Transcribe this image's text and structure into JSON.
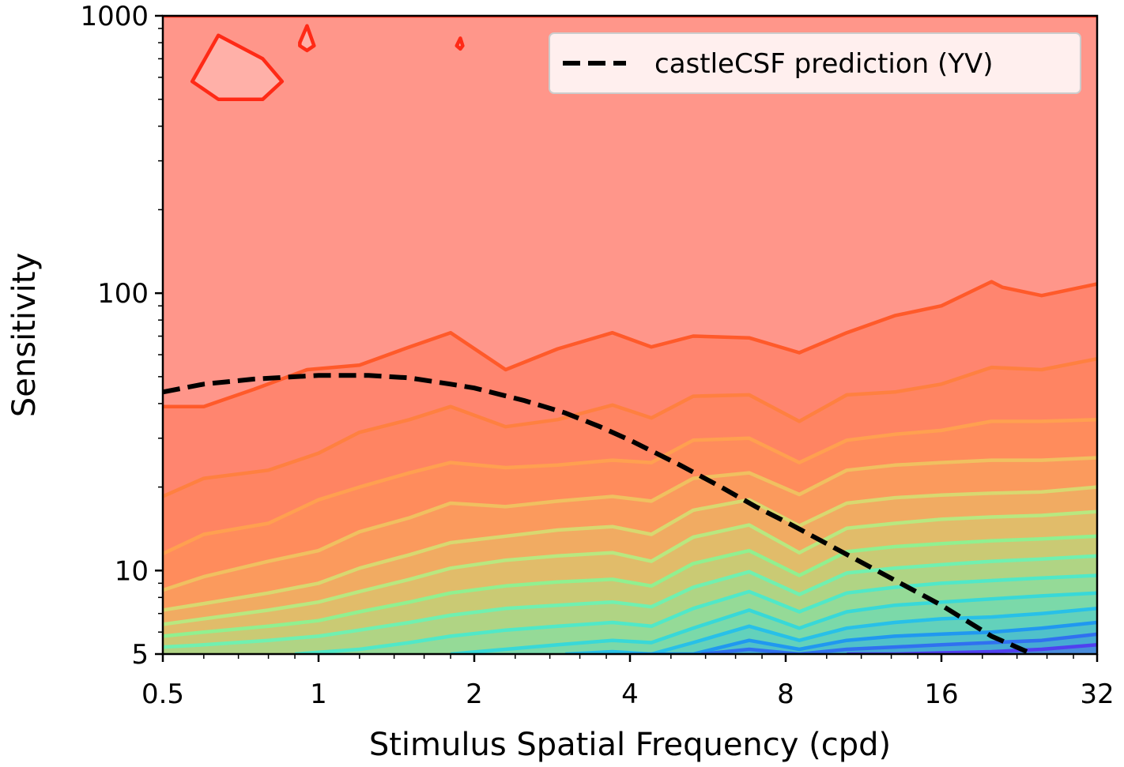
{
  "chart_data": {
    "type": "line",
    "chart_kind": "contour plot with overlaid model prediction",
    "xlabel": "Stimulus Spatial Frequency (cpd)",
    "ylabel": "Sensitivity",
    "x_scale": "log2",
    "y_scale": "log10",
    "xlim": [
      0.5,
      32
    ],
    "ylim": [
      5,
      1000
    ],
    "x_ticks": [
      0.5,
      1,
      2,
      4,
      8,
      16,
      32
    ],
    "x_tick_labels": [
      "0.5",
      "1",
      "2",
      "4",
      "8",
      "16",
      "32"
    ],
    "y_ticks": [
      5,
      10,
      100,
      1000
    ],
    "y_tick_labels": [
      "5",
      "10",
      "100",
      "1000"
    ],
    "grid": false,
    "legend": {
      "position": "top-right",
      "entries": [
        "castleCSF prediction (YV)"
      ]
    },
    "series": [
      {
        "name": "castleCSF prediction (YV)",
        "style": "dashed",
        "color": "#000000",
        "x": [
          0.5,
          0.6,
          0.75,
          0.9,
          1.0,
          1.25,
          1.5,
          1.8,
          2.0,
          2.5,
          3.0,
          3.5,
          4.0,
          5.0,
          6.0,
          7.0,
          8.0,
          10.0,
          12.0,
          16.0,
          20.0,
          24.0
        ],
        "y": [
          44,
          47,
          49,
          50,
          50.5,
          50.5,
          49.5,
          47,
          45.5,
          41,
          37,
          33,
          29.5,
          24,
          20,
          17,
          15,
          12,
          10,
          7.5,
          5.8,
          5.0
        ]
      }
    ],
    "contour_levels": [
      {
        "color": "#ff2a16",
        "x": [
          0.5,
          0.6,
          0.75,
          0.9,
          1.0,
          1.25,
          1.5,
          1.8,
          2.0,
          2.4,
          2.8,
          3.5,
          4.0,
          5.0,
          6.0,
          7.0,
          8.0,
          10.0,
          13.0,
          17.0,
          21.0,
          23.0,
          26.0,
          32.0
        ],
        "y": [
          1000,
          1000,
          1000,
          1000,
          1000,
          1000,
          1000,
          1000,
          1000,
          1000,
          1000,
          1000,
          1000,
          1000,
          1000,
          1000,
          1000,
          1000,
          1000,
          1000,
          1000,
          1000,
          1000,
          1000
        ]
      },
      {
        "color": "#ff5a2a",
        "x": [
          0.5,
          0.6,
          0.75,
          0.95,
          1.2,
          1.5,
          1.8,
          2.3,
          2.9,
          3.7,
          4.4,
          5.3,
          6.8,
          8.5,
          10.5,
          13.0,
          16.0,
          20.0,
          21.0,
          25.0,
          32.0
        ],
        "y": [
          39,
          39,
          45,
          53,
          55,
          64,
          72,
          53,
          63,
          72,
          64,
          70,
          69,
          61,
          72,
          83,
          90,
          110,
          105,
          98,
          108
        ]
      },
      {
        "color": "#ff8040",
        "x": [
          0.5,
          0.6,
          0.8,
          1.0,
          1.2,
          1.5,
          1.8,
          2.3,
          2.9,
          3.7,
          4.4,
          5.3,
          6.8,
          8.5,
          10.5,
          13.0,
          16.0,
          20.0,
          25.0,
          32.0
        ],
        "y": [
          18.5,
          21.5,
          23,
          26.5,
          31.5,
          35,
          39,
          33,
          35,
          39.5,
          35.5,
          42.5,
          43,
          34.5,
          43,
          44,
          47,
          54,
          53,
          58
        ]
      },
      {
        "color": "#ffa050",
        "x": [
          0.5,
          0.6,
          0.8,
          1.0,
          1.2,
          1.5,
          1.8,
          2.3,
          2.9,
          3.7,
          4.4,
          5.3,
          6.8,
          8.5,
          10.5,
          13.0,
          16.0,
          20.0,
          25.0,
          32.0
        ],
        "y": [
          11.5,
          13.5,
          14.8,
          18,
          20,
          22.5,
          24.5,
          23.5,
          24,
          25,
          24.5,
          29.5,
          30,
          24.5,
          29.5,
          31,
          32,
          34.5,
          34.5,
          35
        ]
      },
      {
        "color": "#f0c060",
        "x": [
          0.5,
          0.6,
          0.8,
          1.0,
          1.2,
          1.5,
          1.8,
          2.3,
          2.9,
          3.7,
          4.4,
          5.3,
          6.8,
          8.5,
          10.5,
          13.0,
          16.0,
          20.0,
          25.0,
          32.0
        ],
        "y": [
          8.5,
          9.5,
          10.8,
          11.8,
          13.8,
          15.5,
          17.5,
          17,
          17.8,
          18.5,
          17.8,
          21.5,
          22.5,
          18.8,
          23,
          24,
          24.5,
          25,
          25,
          25.5
        ]
      },
      {
        "color": "#d8d870",
        "x": [
          0.5,
          0.6,
          0.8,
          1.0,
          1.2,
          1.5,
          1.8,
          2.3,
          2.9,
          3.7,
          4.4,
          5.3,
          6.8,
          8.5,
          10.5,
          13.0,
          16.0,
          20.0,
          25.0,
          32.0
        ],
        "y": [
          7.2,
          7.6,
          8.3,
          9.0,
          10.2,
          11.4,
          12.6,
          13.3,
          14.0,
          14.4,
          13.5,
          16.5,
          18.0,
          14.5,
          17.5,
          18.3,
          18.7,
          19.0,
          19.2,
          20
        ]
      },
      {
        "color": "#b8e880",
        "x": [
          0.5,
          0.6,
          0.8,
          1.0,
          1.2,
          1.5,
          1.8,
          2.3,
          2.9,
          3.7,
          4.4,
          5.3,
          6.8,
          8.5,
          10.5,
          13.0,
          16.0,
          20.0,
          25.0,
          32.0
        ],
        "y": [
          6.4,
          6.7,
          7.2,
          7.7,
          8.4,
          9.3,
          10.2,
          10.9,
          11.3,
          11.6,
          10.8,
          13.2,
          14.6,
          11.6,
          14.2,
          14.8,
          15.3,
          15.6,
          15.8,
          16.3
        ]
      },
      {
        "color": "#90f090",
        "x": [
          0.5,
          0.6,
          0.8,
          1.0,
          1.2,
          1.5,
          1.8,
          2.3,
          2.9,
          3.7,
          4.4,
          5.3,
          6.8,
          8.5,
          10.5,
          13.0,
          16.0,
          20.0,
          25.0,
          32.0
        ],
        "y": [
          5.8,
          6.0,
          6.3,
          6.6,
          7.1,
          7.7,
          8.3,
          8.8,
          9.1,
          9.3,
          8.8,
          10.6,
          11.8,
          9.6,
          11.7,
          12.2,
          12.5,
          12.8,
          13.0,
          13.3
        ]
      },
      {
        "color": "#70f0b0",
        "x": [
          0.5,
          0.6,
          0.8,
          1.0,
          1.2,
          1.5,
          1.8,
          2.3,
          2.9,
          3.7,
          4.4,
          5.3,
          6.8,
          8.5,
          10.5,
          13.0,
          16.0,
          20.0,
          25.0,
          32.0
        ],
        "y": [
          5.3,
          5.4,
          5.6,
          5.8,
          6.1,
          6.5,
          6.9,
          7.3,
          7.5,
          7.7,
          7.4,
          8.7,
          9.9,
          8.2,
          9.8,
          10.2,
          10.5,
          10.8,
          11.0,
          11.3
        ]
      },
      {
        "color": "#50e8c8",
        "x": [
          0.9,
          1.2,
          1.5,
          1.8,
          2.3,
          2.9,
          3.7,
          4.4,
          5.3,
          6.8,
          8.5,
          10.5,
          13.0,
          16.0,
          20.0,
          25.0,
          32.0
        ],
        "y": [
          5.0,
          5.2,
          5.5,
          5.8,
          6.1,
          6.3,
          6.5,
          6.3,
          7.3,
          8.4,
          7.1,
          8.3,
          8.7,
          9.0,
          9.2,
          9.4,
          9.6
        ]
      },
      {
        "color": "#38d8d8",
        "x": [
          1.8,
          2.3,
          2.9,
          3.7,
          4.4,
          5.3,
          6.8,
          8.5,
          10.5,
          13.0,
          16.0,
          20.0,
          25.0,
          32.0
        ],
        "y": [
          5.0,
          5.2,
          5.4,
          5.6,
          5.5,
          6.2,
          7.2,
          6.2,
          7.1,
          7.5,
          7.7,
          7.9,
          8.1,
          8.3
        ]
      },
      {
        "color": "#28c0e8",
        "x": [
          3.0,
          3.7,
          4.4,
          5.3,
          6.8,
          8.5,
          10.5,
          13.0,
          16.0,
          20.0,
          25.0,
          32.0
        ],
        "y": [
          5.0,
          5.1,
          5.0,
          5.5,
          6.3,
          5.6,
          6.2,
          6.5,
          6.7,
          6.8,
          7.0,
          7.3
        ]
      },
      {
        "color": "#2098f0",
        "x": [
          4.0,
          5.3,
          6.8,
          8.5,
          10.5,
          13.0,
          16.0,
          20.0,
          25.0,
          32.0
        ],
        "y": [
          5.0,
          5.0,
          5.6,
          5.2,
          5.6,
          5.8,
          5.9,
          6.0,
          6.2,
          6.5
        ]
      },
      {
        "color": "#3070f0",
        "x": [
          5.5,
          6.8,
          8.5,
          10.5,
          13.0,
          16.0,
          20.0,
          25.0,
          32.0
        ],
        "y": [
          5.0,
          5.2,
          5.0,
          5.2,
          5.3,
          5.4,
          5.5,
          5.6,
          5.9
        ]
      },
      {
        "color": "#5040f0",
        "x": [
          10.5,
          13.0,
          16.0,
          20.0,
          25.0,
          32.0
        ],
        "y": [
          5.0,
          5.0,
          5.05,
          5.1,
          5.2,
          5.4
        ]
      }
    ],
    "contour_islands": [
      {
        "color": "#ff2a16",
        "x": [
          0.64,
          0.78,
          0.85,
          0.78,
          0.64,
          0.57
        ],
        "y": [
          850,
          700,
          580,
          500,
          500,
          580
        ]
      },
      {
        "color": "#ff2a16",
        "x": [
          0.92,
          0.95,
          0.98,
          0.95,
          0.92
        ],
        "y": [
          800,
          920,
          780,
          750,
          780
        ]
      },
      {
        "color": "#ff2a16",
        "x": [
          1.85,
          1.88,
          1.9,
          1.88,
          1.85
        ],
        "y": [
          780,
          830,
          780,
          760,
          780
        ]
      }
    ]
  }
}
